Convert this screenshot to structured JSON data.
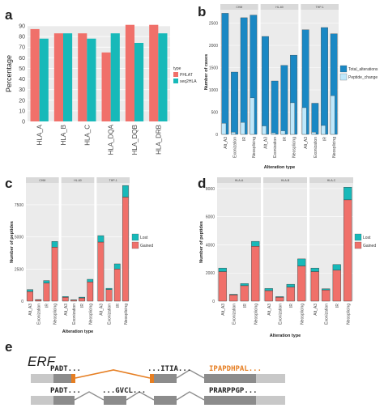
{
  "panel_labels": {
    "a": "a",
    "b": "b",
    "c": "c",
    "d": "d",
    "e": "e"
  },
  "colors": {
    "salmon": "#f0706a",
    "teal": "#17b9b9",
    "dark_blue": "#1a88c4",
    "light_blue": "#bfe8fb",
    "panel_bg": "#ebebeb",
    "strip": "#d9d9d9",
    "orange": "#e67e22",
    "exon": "#8c8c8c",
    "utr": "#c8c8c8"
  },
  "chart_data": [
    {
      "panel": "a",
      "type": "bar",
      "ylabel": "Percentage",
      "xlabel": "",
      "ylim": [
        0,
        90
      ],
      "yticks": [
        0,
        10,
        20,
        30,
        40,
        50,
        60,
        70,
        80,
        90
      ],
      "categories": [
        "HLA_A",
        "HLA_B",
        "HLA_C",
        "HLA_DQA",
        "HLA_DQB",
        "HLA_DRB"
      ],
      "series": [
        {
          "name": "PHLAT",
          "values": [
            87,
            83,
            83,
            65,
            91,
            91
          ]
        },
        {
          "name": "seq2HLA",
          "values": [
            78,
            83,
            78,
            83,
            74,
            83
          ]
        }
      ],
      "legend_title": "type",
      "legend_position": "right",
      "grid": true
    },
    {
      "panel": "b",
      "type": "bar",
      "ylabel": "Number of cases",
      "xlabel": "Alteration type",
      "ylim": [
        0,
        2800
      ],
      "yticks": [
        0,
        500,
        1000,
        1500,
        2000,
        2500
      ],
      "categories": [
        "Alt_A3",
        "Exonization",
        "IR",
        "Neosplicing"
      ],
      "facets": [
        "CHM",
        "HL-60",
        "THP-1"
      ],
      "series": [
        {
          "name": "Total_alterations",
          "values": [
            [
              2720,
              1400,
              2620,
              2680
            ],
            [
              2200,
              1200,
              1550,
              1780
            ],
            [
              2350,
              700,
              2400,
              2260
            ]
          ]
        },
        {
          "name": "Peptide_change",
          "values": [
            [
              250,
              50,
              270,
              820
            ],
            [
              190,
              35,
              80,
              710
            ],
            [
              600,
              50,
              200,
              870
            ]
          ]
        }
      ],
      "legend_position": "right",
      "grid": true
    },
    {
      "panel": "c",
      "type": "bar",
      "stacked": true,
      "ylabel": "Number of peptides",
      "xlabel": "Alteration type",
      "ylim": [
        0,
        9200
      ],
      "yticks": [
        0,
        2500,
        5000,
        7500
      ],
      "categories": [
        "Alt_A3",
        "Exonization",
        "IR",
        "Neosplicing"
      ],
      "facets": [
        "CHM",
        "HL-60",
        "THP-1"
      ],
      "series": [
        {
          "name": "Lost",
          "values": [
            [
              750,
              100,
              1400,
              4200
            ],
            [
              300,
              80,
              250,
              1500
            ],
            [
              4600,
              900,
              2500,
              8100
            ]
          ]
        },
        {
          "name": "Gained",
          "values": [
            [
              150,
              20,
              200,
              450
            ],
            [
              60,
              20,
              60,
              200
            ],
            [
              500,
              100,
              400,
              900
            ]
          ]
        }
      ],
      "legend_position": "right",
      "grid": true
    },
    {
      "panel": "d",
      "type": "bar",
      "stacked": true,
      "ylabel": "Number of peptides",
      "xlabel": "Alteration type",
      "ylim": [
        0,
        8400
      ],
      "yticks": [
        0,
        2000,
        4000,
        6000,
        8000
      ],
      "categories": [
        "Alt_A3",
        "Exonization",
        "IR",
        "Neosplicing"
      ],
      "facets": [
        "HLA-A",
        "HLA-B",
        "HLA-C"
      ],
      "series": [
        {
          "name": "Lost",
          "values": [
            [
              2100,
              450,
              1100,
              3900
            ],
            [
              750,
              280,
              1000,
              2500
            ],
            [
              2100,
              800,
              2200,
              7200
            ]
          ]
        },
        {
          "name": "Gained",
          "values": [
            [
              250,
              40,
              150,
              350
            ],
            [
              150,
              40,
              200,
              500
            ],
            [
              250,
              80,
              400,
              900
            ]
          ]
        }
      ],
      "legend_position": "right",
      "grid": true
    }
  ],
  "gene_panel": {
    "title": "ERF",
    "row1": [
      "PADT...",
      "...ITIA...",
      "IPAPDHPAL..."
    ],
    "row2": [
      "PADT...",
      "...GVCL...",
      "PRARPPGP..."
    ]
  }
}
